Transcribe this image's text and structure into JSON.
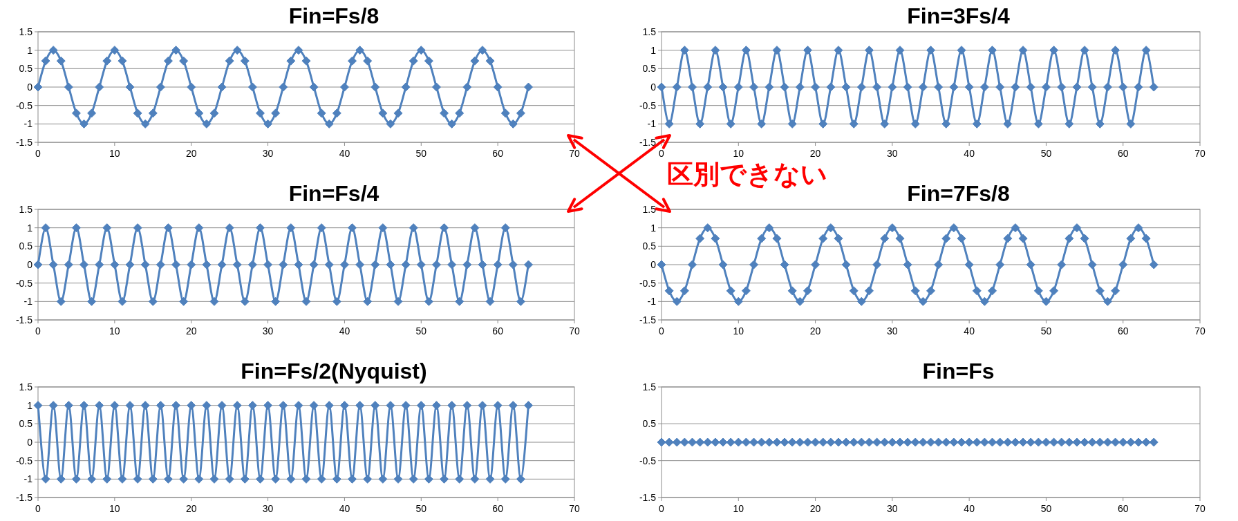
{
  "chart_data": [
    {
      "type": "line",
      "title": "Fin=Fs/8",
      "color": "#4f81bd",
      "marker": "diamond",
      "grid": "y",
      "xlim": [
        0,
        70
      ],
      "ylim": [
        -1.5,
        1.5
      ],
      "xticks": [
        0,
        10,
        20,
        30,
        40,
        50,
        60,
        70
      ],
      "yticks": [
        -1.5,
        -1,
        -0.5,
        0,
        0.5,
        1,
        1.5
      ],
      "x": [
        0,
        1,
        2,
        3,
        4,
        5,
        6,
        7,
        8,
        9,
        10,
        11,
        12,
        13,
        14,
        15,
        16,
        17,
        18,
        19,
        20,
        21,
        22,
        23,
        24,
        25,
        26,
        27,
        28,
        29,
        30,
        31,
        32,
        33,
        34,
        35,
        36,
        37,
        38,
        39,
        40,
        41,
        42,
        43,
        44,
        45,
        46,
        47,
        48,
        49,
        50,
        51,
        52,
        53,
        54,
        55,
        56,
        57,
        58,
        59,
        60,
        61,
        62,
        63,
        64
      ],
      "values": [
        0,
        0.71,
        1,
        0.71,
        0,
        -0.71,
        -1,
        -0.71,
        0,
        0.71,
        1,
        0.71,
        0,
        -0.71,
        -1,
        -0.71,
        0,
        0.71,
        1,
        0.71,
        0,
        -0.71,
        -1,
        -0.71,
        0,
        0.71,
        1,
        0.71,
        0,
        -0.71,
        -1,
        -0.71,
        0,
        0.71,
        1,
        0.71,
        0,
        -0.71,
        -1,
        -0.71,
        0,
        0.71,
        1,
        0.71,
        0,
        -0.71,
        -1,
        -0.71,
        0,
        0.71,
        1,
        0.71,
        0,
        -0.71,
        -1,
        -0.71,
        0,
        0.71,
        1,
        0.71,
        0,
        -0.71,
        -1,
        -0.71,
        0
      ]
    },
    {
      "type": "line",
      "title": "Fin=3Fs/4",
      "color": "#4f81bd",
      "marker": "diamond",
      "grid": "y",
      "xlim": [
        0,
        70
      ],
      "ylim": [
        -1.5,
        1.5
      ],
      "xticks": [
        0,
        10,
        20,
        30,
        40,
        50,
        60,
        70
      ],
      "yticks": [
        -1.5,
        -1,
        -0.5,
        0,
        0.5,
        1,
        1.5
      ],
      "x": [
        0,
        1,
        2,
        3,
        4,
        5,
        6,
        7,
        8,
        9,
        10,
        11,
        12,
        13,
        14,
        15,
        16,
        17,
        18,
        19,
        20,
        21,
        22,
        23,
        24,
        25,
        26,
        27,
        28,
        29,
        30,
        31,
        32,
        33,
        34,
        35,
        36,
        37,
        38,
        39,
        40,
        41,
        42,
        43,
        44,
        45,
        46,
        47,
        48,
        49,
        50,
        51,
        52,
        53,
        54,
        55,
        56,
        57,
        58,
        59,
        60,
        61,
        62,
        63,
        64
      ],
      "values": [
        0,
        -1,
        0,
        1,
        0,
        -1,
        0,
        1,
        0,
        -1,
        0,
        1,
        0,
        -1,
        0,
        1,
        0,
        -1,
        0,
        1,
        0,
        -1,
        0,
        1,
        0,
        -1,
        0,
        1,
        0,
        -1,
        0,
        1,
        0,
        -1,
        0,
        1,
        0,
        -1,
        0,
        1,
        0,
        -1,
        0,
        1,
        0,
        -1,
        0,
        1,
        0,
        -1,
        0,
        1,
        0,
        -1,
        0,
        1,
        0,
        -1,
        0,
        1,
        0,
        -1,
        0,
        1,
        0
      ]
    },
    {
      "type": "line",
      "title": "Fin=Fs/4",
      "color": "#4f81bd",
      "marker": "diamond",
      "grid": "y",
      "xlim": [
        0,
        70
      ],
      "ylim": [
        -1.5,
        1.5
      ],
      "xticks": [
        0,
        10,
        20,
        30,
        40,
        50,
        60,
        70
      ],
      "yticks": [
        -1.5,
        -1,
        -0.5,
        0,
        0.5,
        1,
        1.5
      ],
      "x": [
        0,
        1,
        2,
        3,
        4,
        5,
        6,
        7,
        8,
        9,
        10,
        11,
        12,
        13,
        14,
        15,
        16,
        17,
        18,
        19,
        20,
        21,
        22,
        23,
        24,
        25,
        26,
        27,
        28,
        29,
        30,
        31,
        32,
        33,
        34,
        35,
        36,
        37,
        38,
        39,
        40,
        41,
        42,
        43,
        44,
        45,
        46,
        47,
        48,
        49,
        50,
        51,
        52,
        53,
        54,
        55,
        56,
        57,
        58,
        59,
        60,
        61,
        62,
        63,
        64
      ],
      "values": [
        0,
        1,
        0,
        -1,
        0,
        1,
        0,
        -1,
        0,
        1,
        0,
        -1,
        0,
        1,
        0,
        -1,
        0,
        1,
        0,
        -1,
        0,
        1,
        0,
        -1,
        0,
        1,
        0,
        -1,
        0,
        1,
        0,
        -1,
        0,
        1,
        0,
        -1,
        0,
        1,
        0,
        -1,
        0,
        1,
        0,
        -1,
        0,
        1,
        0,
        -1,
        0,
        1,
        0,
        -1,
        0,
        1,
        0,
        -1,
        0,
        1,
        0,
        -1,
        0,
        1,
        0,
        -1,
        0
      ]
    },
    {
      "type": "line",
      "title": "Fin=7Fs/8",
      "color": "#4f81bd",
      "marker": "diamond",
      "grid": "y",
      "xlim": [
        0,
        70
      ],
      "ylim": [
        -1.5,
        1.5
      ],
      "xticks": [
        0,
        10,
        20,
        30,
        40,
        50,
        60,
        70
      ],
      "yticks": [
        -1.5,
        -1,
        -0.5,
        0,
        0.5,
        1,
        1.5
      ],
      "x": [
        0,
        1,
        2,
        3,
        4,
        5,
        6,
        7,
        8,
        9,
        10,
        11,
        12,
        13,
        14,
        15,
        16,
        17,
        18,
        19,
        20,
        21,
        22,
        23,
        24,
        25,
        26,
        27,
        28,
        29,
        30,
        31,
        32,
        33,
        34,
        35,
        36,
        37,
        38,
        39,
        40,
        41,
        42,
        43,
        44,
        45,
        46,
        47,
        48,
        49,
        50,
        51,
        52,
        53,
        54,
        55,
        56,
        57,
        58,
        59,
        60,
        61,
        62,
        63,
        64
      ],
      "values": [
        0,
        -0.71,
        -1,
        -0.71,
        0,
        0.71,
        1,
        0.71,
        0,
        -0.71,
        -1,
        -0.71,
        0,
        0.71,
        1,
        0.71,
        0,
        -0.71,
        -1,
        -0.71,
        0,
        0.71,
        1,
        0.71,
        0,
        -0.71,
        -1,
        -0.71,
        0,
        0.71,
        1,
        0.71,
        0,
        -0.71,
        -1,
        -0.71,
        0,
        0.71,
        1,
        0.71,
        0,
        -0.71,
        -1,
        -0.71,
        0,
        0.71,
        1,
        0.71,
        0,
        -0.71,
        -1,
        -0.71,
        0,
        0.71,
        1,
        0.71,
        0,
        -0.71,
        -1,
        -0.71,
        0,
        0.71,
        1,
        0.71,
        0
      ]
    },
    {
      "type": "line",
      "title": "Fin=Fs/2(Nyquist)",
      "color": "#4f81bd",
      "marker": "diamond",
      "grid": "y",
      "xlim": [
        0,
        70
      ],
      "ylim": [
        -1.5,
        1.5
      ],
      "xticks": [
        0,
        10,
        20,
        30,
        40,
        50,
        60,
        70
      ],
      "yticks": [
        -1.5,
        -1,
        -0.5,
        0,
        0.5,
        1,
        1.5
      ],
      "x": [
        0,
        1,
        2,
        3,
        4,
        5,
        6,
        7,
        8,
        9,
        10,
        11,
        12,
        13,
        14,
        15,
        16,
        17,
        18,
        19,
        20,
        21,
        22,
        23,
        24,
        25,
        26,
        27,
        28,
        29,
        30,
        31,
        32,
        33,
        34,
        35,
        36,
        37,
        38,
        39,
        40,
        41,
        42,
        43,
        44,
        45,
        46,
        47,
        48,
        49,
        50,
        51,
        52,
        53,
        54,
        55,
        56,
        57,
        58,
        59,
        60,
        61,
        62,
        63,
        64
      ],
      "values": [
        1,
        -1,
        1,
        -1,
        1,
        -1,
        1,
        -1,
        1,
        -1,
        1,
        -1,
        1,
        -1,
        1,
        -1,
        1,
        -1,
        1,
        -1,
        1,
        -1,
        1,
        -1,
        1,
        -1,
        1,
        -1,
        1,
        -1,
        1,
        -1,
        1,
        -1,
        1,
        -1,
        1,
        -1,
        1,
        -1,
        1,
        -1,
        1,
        -1,
        1,
        -1,
        1,
        -1,
        1,
        -1,
        1,
        -1,
        1,
        -1,
        1,
        -1,
        1,
        -1,
        1,
        -1,
        1,
        -1,
        1,
        -1,
        1
      ]
    },
    {
      "type": "line",
      "title": "Fin=Fs",
      "color": "#4f81bd",
      "marker": "diamond",
      "grid": "y",
      "xlim": [
        0,
        70
      ],
      "ylim": [
        -1.5,
        1.5
      ],
      "xticks": [
        0,
        10,
        20,
        30,
        40,
        50,
        60,
        70
      ],
      "yticks": [
        -1.5,
        -0.5,
        0.5,
        1.5
      ],
      "x": [
        0,
        1,
        2,
        3,
        4,
        5,
        6,
        7,
        8,
        9,
        10,
        11,
        12,
        13,
        14,
        15,
        16,
        17,
        18,
        19,
        20,
        21,
        22,
        23,
        24,
        25,
        26,
        27,
        28,
        29,
        30,
        31,
        32,
        33,
        34,
        35,
        36,
        37,
        38,
        39,
        40,
        41,
        42,
        43,
        44,
        45,
        46,
        47,
        48,
        49,
        50,
        51,
        52,
        53,
        54,
        55,
        56,
        57,
        58,
        59,
        60,
        61,
        62,
        63,
        64
      ],
      "values": [
        0,
        0,
        0,
        0,
        0,
        0,
        0,
        0,
        0,
        0,
        0,
        0,
        0,
        0,
        0,
        0,
        0,
        0,
        0,
        0,
        0,
        0,
        0,
        0,
        0,
        0,
        0,
        0,
        0,
        0,
        0,
        0,
        0,
        0,
        0,
        0,
        0,
        0,
        0,
        0,
        0,
        0,
        0,
        0,
        0,
        0,
        0,
        0,
        0,
        0,
        0,
        0,
        0,
        0,
        0,
        0,
        0,
        0,
        0,
        0,
        0,
        0,
        0,
        0,
        0
      ]
    },
    {
      "type": "other",
      "annotations": [
        "区別できない"
      ]
    }
  ]
}
